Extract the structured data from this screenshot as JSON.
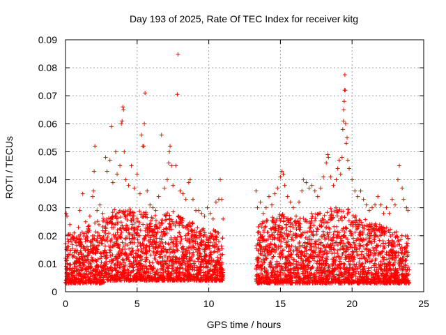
{
  "chart_data": {
    "type": "scatter",
    "title": "Day 193 of 2025, Rate Of TEC Index for receiver kitg",
    "xlabel": "GPS time / hours",
    "ylabel": "ROTI / TECUs",
    "xlim": [
      0,
      25
    ],
    "ylim": [
      0,
      0.09
    ],
    "xticks": [
      0,
      5,
      10,
      15,
      20,
      25
    ],
    "xtick_labels": [
      "0",
      "5",
      "10",
      "15",
      "20",
      "25"
    ],
    "yticks": [
      0,
      0.01,
      0.02,
      0.03,
      0.04,
      0.05,
      0.06,
      0.07,
      0.08,
      0.09
    ],
    "ytick_labels": [
      "0",
      "0.01",
      "0.02",
      "0.03",
      "0.04",
      "0.05",
      "0.06",
      "0.07",
      "0.08",
      "0.09"
    ],
    "grid": true,
    "marker": "+",
    "color": "#ff0000",
    "data_gap_hours": [
      11.0,
      13.3
    ],
    "series": [
      {
        "name": "ROTI",
        "points": [
          [
            0.05,
            0.028
          ],
          [
            0.1,
            0.027
          ],
          [
            0.3,
            0.024
          ],
          [
            0.6,
            0.021
          ],
          [
            0.9,
            0.023
          ],
          [
            1.0,
            0.029
          ],
          [
            1.2,
            0.035
          ],
          [
            1.4,
            0.025
          ],
          [
            1.5,
            0.021
          ],
          [
            1.7,
            0.027
          ],
          [
            1.9,
            0.034
          ],
          [
            1.95,
            0.036
          ],
          [
            2.0,
            0.043
          ],
          [
            2.05,
            0.052
          ],
          [
            2.2,
            0.029
          ],
          [
            2.4,
            0.031
          ],
          [
            2.6,
            0.028
          ],
          [
            2.8,
            0.048
          ],
          [
            2.9,
            0.043
          ],
          [
            3.1,
            0.047
          ],
          [
            3.2,
            0.059
          ],
          [
            3.3,
            0.039
          ],
          [
            3.5,
            0.05
          ],
          [
            3.6,
            0.042
          ],
          [
            3.8,
            0.045
          ],
          [
            3.9,
            0.06
          ],
          [
            3.95,
            0.061
          ],
          [
            4.0,
            0.066
          ],
          [
            4.05,
            0.065
          ],
          [
            4.1,
            0.05
          ],
          [
            4.2,
            0.04
          ],
          [
            4.4,
            0.038
          ],
          [
            4.6,
            0.045
          ],
          [
            4.8,
            0.037
          ],
          [
            5.0,
            0.042
          ],
          [
            5.2,
            0.035
          ],
          [
            5.3,
            0.056
          ],
          [
            5.4,
            0.052
          ],
          [
            5.45,
            0.052
          ],
          [
            5.5,
            0.06
          ],
          [
            5.55,
            0.071
          ],
          [
            5.7,
            0.036
          ],
          [
            5.9,
            0.031
          ],
          [
            6.1,
            0.03
          ],
          [
            6.3,
            0.029
          ],
          [
            6.5,
            0.034
          ],
          [
            6.7,
            0.056
          ],
          [
            6.9,
            0.037
          ],
          [
            7.1,
            0.04
          ],
          [
            7.2,
            0.046
          ],
          [
            7.25,
            0.05
          ],
          [
            7.3,
            0.052
          ],
          [
            7.4,
            0.045
          ],
          [
            7.5,
            0.038
          ],
          [
            7.7,
            0.045
          ],
          [
            7.8,
            0.0705
          ],
          [
            7.85,
            0.0848
          ],
          [
            8.0,
            0.036
          ],
          [
            8.2,
            0.035
          ],
          [
            8.4,
            0.033
          ],
          [
            8.6,
            0.039
          ],
          [
            8.7,
            0.04
          ],
          [
            8.9,
            0.033
          ],
          [
            9.1,
            0.029
          ],
          [
            9.3,
            0.029
          ],
          [
            9.5,
            0.028
          ],
          [
            9.7,
            0.027
          ],
          [
            9.9,
            0.03
          ],
          [
            10.1,
            0.028
          ],
          [
            10.3,
            0.026
          ],
          [
            10.5,
            0.032
          ],
          [
            10.7,
            0.033
          ],
          [
            10.8,
            0.04
          ],
          [
            10.9,
            0.033
          ],
          [
            11.0,
            0.026
          ],
          [
            13.3,
            0.036
          ],
          [
            13.4,
            0.03
          ],
          [
            13.6,
            0.032
          ],
          [
            13.8,
            0.028
          ],
          [
            14.0,
            0.03
          ],
          [
            14.2,
            0.034
          ],
          [
            14.4,
            0.031
          ],
          [
            14.6,
            0.035
          ],
          [
            14.8,
            0.037
          ],
          [
            15.0,
            0.041
          ],
          [
            15.1,
            0.043
          ],
          [
            15.2,
            0.042
          ],
          [
            15.3,
            0.038
          ],
          [
            15.5,
            0.034
          ],
          [
            15.7,
            0.032
          ],
          [
            15.9,
            0.03
          ],
          [
            16.1,
            0.027
          ],
          [
            16.3,
            0.032
          ],
          [
            16.5,
            0.036
          ],
          [
            16.6,
            0.04
          ],
          [
            16.8,
            0.039
          ],
          [
            17.0,
            0.037
          ],
          [
            17.2,
            0.038
          ],
          [
            17.4,
            0.036
          ],
          [
            17.6,
            0.034
          ],
          [
            17.8,
            0.037
          ],
          [
            18.0,
            0.041
          ],
          [
            18.2,
            0.046
          ],
          [
            18.3,
            0.049
          ],
          [
            18.35,
            0.048
          ],
          [
            18.5,
            0.041
          ],
          [
            18.7,
            0.038
          ],
          [
            18.9,
            0.04
          ],
          [
            19.0,
            0.044
          ],
          [
            19.1,
            0.047
          ],
          [
            19.2,
            0.042
          ],
          [
            19.3,
            0.048
          ],
          [
            19.35,
            0.058
          ],
          [
            19.4,
            0.061
          ],
          [
            19.42,
            0.065
          ],
          [
            19.45,
            0.068
          ],
          [
            19.48,
            0.072
          ],
          [
            19.5,
            0.0775
          ],
          [
            19.52,
            0.072
          ],
          [
            19.55,
            0.06
          ],
          [
            19.6,
            0.053
          ],
          [
            19.65,
            0.055
          ],
          [
            19.7,
            0.047
          ],
          [
            19.8,
            0.044
          ],
          [
            20.0,
            0.04
          ],
          [
            20.2,
            0.036
          ],
          [
            20.4,
            0.034
          ],
          [
            20.6,
            0.036
          ],
          [
            20.8,
            0.033
          ],
          [
            21.0,
            0.031
          ],
          [
            21.2,
            0.029
          ],
          [
            21.4,
            0.03
          ],
          [
            21.6,
            0.031
          ],
          [
            21.8,
            0.034
          ],
          [
            22.0,
            0.031
          ],
          [
            22.2,
            0.028
          ],
          [
            22.4,
            0.03
          ],
          [
            22.6,
            0.028
          ],
          [
            22.8,
            0.033
          ],
          [
            23.0,
            0.031
          ],
          [
            23.2,
            0.04
          ],
          [
            23.3,
            0.045
          ],
          [
            23.5,
            0.037
          ],
          [
            23.6,
            0.033
          ],
          [
            23.8,
            0.03
          ],
          [
            23.9,
            0.029
          ]
        ],
        "background_envelope": [
          [
            0.0,
            0.003,
            0.02
          ],
          [
            0.5,
            0.003,
            0.022
          ],
          [
            1.0,
            0.003,
            0.022
          ],
          [
            1.5,
            0.003,
            0.024
          ],
          [
            2.0,
            0.003,
            0.025
          ],
          [
            2.5,
            0.003,
            0.026
          ],
          [
            3.0,
            0.004,
            0.028
          ],
          [
            3.5,
            0.004,
            0.03
          ],
          [
            4.0,
            0.004,
            0.03
          ],
          [
            4.5,
            0.004,
            0.03
          ],
          [
            5.0,
            0.004,
            0.029
          ],
          [
            5.5,
            0.004,
            0.03
          ],
          [
            6.0,
            0.004,
            0.028
          ],
          [
            6.5,
            0.004,
            0.027
          ],
          [
            7.0,
            0.004,
            0.028
          ],
          [
            7.5,
            0.004,
            0.029
          ],
          [
            8.0,
            0.004,
            0.027
          ],
          [
            8.5,
            0.004,
            0.025
          ],
          [
            9.0,
            0.004,
            0.025
          ],
          [
            9.5,
            0.004,
            0.023
          ],
          [
            10.0,
            0.004,
            0.022
          ],
          [
            10.5,
            0.004,
            0.022
          ],
          [
            11.0,
            0.004,
            0.02
          ],
          [
            13.3,
            0.003,
            0.022
          ],
          [
            13.5,
            0.003,
            0.024
          ],
          [
            14.0,
            0.003,
            0.026
          ],
          [
            14.5,
            0.003,
            0.027
          ],
          [
            15.0,
            0.003,
            0.028
          ],
          [
            15.5,
            0.003,
            0.027
          ],
          [
            16.0,
            0.003,
            0.026
          ],
          [
            16.5,
            0.003,
            0.028
          ],
          [
            17.0,
            0.003,
            0.028
          ],
          [
            17.5,
            0.003,
            0.028
          ],
          [
            18.0,
            0.003,
            0.029
          ],
          [
            18.5,
            0.003,
            0.03
          ],
          [
            19.0,
            0.003,
            0.03
          ],
          [
            19.5,
            0.003,
            0.031
          ],
          [
            20.0,
            0.003,
            0.029
          ],
          [
            20.5,
            0.003,
            0.027
          ],
          [
            21.0,
            0.003,
            0.026
          ],
          [
            21.5,
            0.003,
            0.025
          ],
          [
            22.0,
            0.003,
            0.024
          ],
          [
            22.5,
            0.003,
            0.023
          ],
          [
            23.0,
            0.003,
            0.022
          ],
          [
            23.5,
            0.003,
            0.021
          ],
          [
            24.0,
            0.003,
            0.02
          ]
        ]
      }
    ]
  }
}
